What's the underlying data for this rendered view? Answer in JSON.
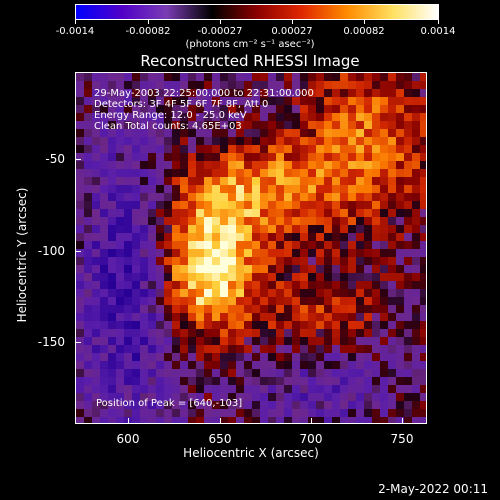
{
  "colorbar": {
    "ticks": [
      "-0.0014",
      "-0.00082",
      "-0.00027",
      "0.00027",
      "0.00082",
      "0.0014"
    ],
    "units": "(photons cm⁻² s⁻¹ asec⁻²)",
    "colors": [
      "#0000ff",
      "#5000c8",
      "#7a3cb4",
      "#000000",
      "#8c0000",
      "#e02800",
      "#ff8c00",
      "#ffe060",
      "#ffffff"
    ]
  },
  "title": "Reconstructed RHESSI Image",
  "info": {
    "line1": "29-May-2003 22:25:00.000 to 22:31:00.000",
    "line2": "Detectors: 3F 4F 5F 6F 7F 8F, Att 0",
    "line3": "Energy Range: 12.0 - 25.0 keV",
    "line4": "Clean     Total counts: 4.65E+03"
  },
  "peak_label": "Position of Peak = [640,-103]",
  "axes": {
    "xlabel": "Heliocentric X (arcsec)",
    "ylabel": "Heliocentric Y (arcsec)",
    "xticks": [
      "600",
      "650",
      "700",
      "750"
    ],
    "yticks": [
      "-50",
      "-100",
      "-150"
    ]
  },
  "timestamp": "2-May-2022 00:11"
}
